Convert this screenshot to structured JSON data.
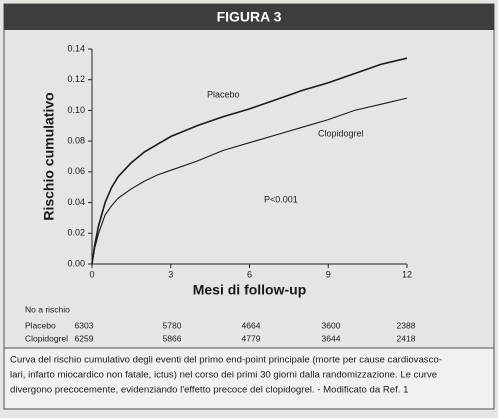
{
  "header": {
    "title": "FIGURA 3"
  },
  "chart_data": {
    "type": "line",
    "x": [
      0,
      0.1,
      0.25,
      0.5,
      0.75,
      1,
      1.5,
      2,
      2.5,
      3,
      4,
      5,
      6,
      7,
      8,
      9,
      10,
      11,
      12
    ],
    "series": [
      {
        "name": "Placebo",
        "color": "#1a1a1a",
        "values": [
          0,
          0.012,
          0.025,
          0.04,
          0.05,
          0.057,
          0.066,
          0.073,
          0.078,
          0.083,
          0.09,
          0.096,
          0.101,
          0.107,
          0.113,
          0.118,
          0.124,
          0.13,
          0.134
        ]
      },
      {
        "name": "Clopidogrel",
        "color": "#1a1a1a",
        "values": [
          0,
          0.01,
          0.02,
          0.032,
          0.038,
          0.043,
          0.049,
          0.054,
          0.058,
          0.061,
          0.067,
          0.074,
          0.079,
          0.084,
          0.089,
          0.094,
          0.1,
          0.104,
          0.108
        ]
      }
    ],
    "xlim": [
      0,
      12
    ],
    "xticks": [
      0,
      3,
      6,
      9,
      12
    ],
    "ylim": [
      0,
      0.14
    ],
    "yticks": [
      {
        "value": 0,
        "label": "0.00"
      },
      0.02,
      0.04,
      0.06,
      0.08,
      {
        "value": 0.1,
        "label": "0.10"
      },
      0.12,
      0.14
    ],
    "xlabel": "Mesi di follow-up",
    "ylabel": "Rischio cumulativo",
    "annotation": "P<0.001",
    "risk_table": {
      "title": "No a rischio",
      "rows": [
        {
          "label": "Placebo",
          "values": [
            6303,
            5780,
            4664,
            3600,
            2388
          ]
        },
        {
          "label": "Clopidogrel",
          "values": [
            6259,
            5866,
            4779,
            3644,
            2418
          ]
        }
      ]
    }
  },
  "caption": [
    "Curva del rischio cumulativo degli eventi del primo end-point principale (morte per cause cardiovasco-",
    "lari, infarto miocardico non fatale, ictus) nel corso dei primi 30 giorni dalla randomizzazione. Le curve",
    "divergono precocemente, evidenziando l'effetto precoce del clopidogrel. - Modificato da Ref. 1"
  ]
}
